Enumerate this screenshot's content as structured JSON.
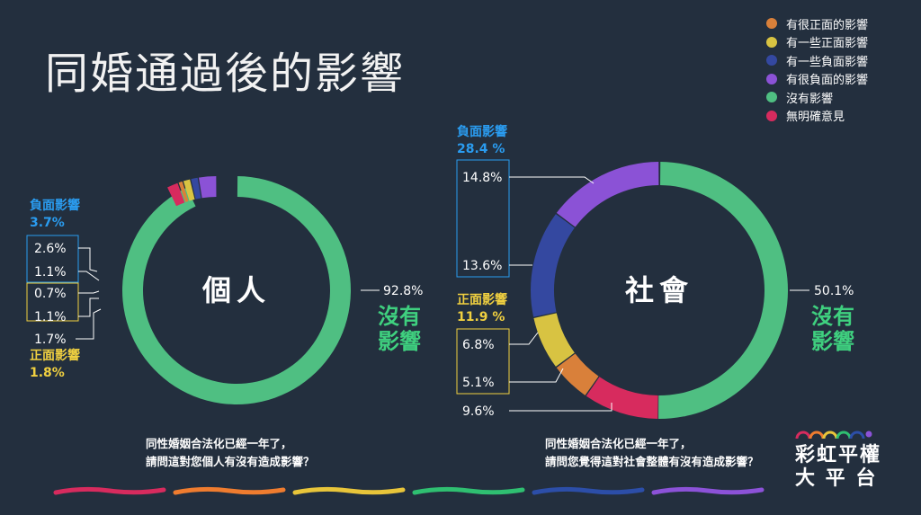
{
  "title": "同婚通過後的影響",
  "chart_data": {
    "type": "pie",
    "legend_position": "top-right",
    "legend": [
      {
        "label": "有很正面的影響",
        "color": "#d9803a"
      },
      {
        "label": "有一些正面影響",
        "color": "#d8c342"
      },
      {
        "label": "有一些負面影響",
        "color": "#3448a0"
      },
      {
        "label": "有很負面的影響",
        "color": "#8b52d6"
      },
      {
        "label": "沒有影響",
        "color": "#4fbf82"
      },
      {
        "label": "無明確意見",
        "color": "#d72b5e"
      }
    ],
    "charts": [
      {
        "center_label": "個人",
        "question": [
          "同性婚姻合法化已經一年了，",
          "請問這對您個人有沒有造成影響？"
        ],
        "slices": [
          {
            "label": "有很正面的影響",
            "value": 0.7
          },
          {
            "label": "有一些正面影響",
            "value": 1.1
          },
          {
            "label": "有一些負面影響",
            "value": 1.1
          },
          {
            "label": "有很負面的影響",
            "value": 2.6
          },
          {
            "label": "沒有影響",
            "value": 92.8
          },
          {
            "label": "無明確意見",
            "value": 1.7
          }
        ],
        "value_labels": [
          "2.6%",
          "1.1%",
          "0.7%",
          "1.1%",
          "1.7%",
          "92.8%"
        ],
        "negative": {
          "label": "負面影響",
          "total": "3.7%"
        },
        "positive": {
          "label": "正面影響",
          "total": "1.8%"
        },
        "no_effect_label": [
          "沒有",
          "影響"
        ]
      },
      {
        "center_label": "社會",
        "question": [
          "同性婚姻合法化已經一年了，",
          "請問您覺得這對社會整體有沒有造成影響？"
        ],
        "slices": [
          {
            "label": "有很正面的影響",
            "value": 5.1
          },
          {
            "label": "有一些正面影響",
            "value": 6.8
          },
          {
            "label": "有一些負面影響",
            "value": 13.6
          },
          {
            "label": "有很負面的影響",
            "value": 14.8
          },
          {
            "label": "沒有影響",
            "value": 50.1
          },
          {
            "label": "無明確意見",
            "value": 9.6
          }
        ],
        "value_labels": [
          "14.8%",
          "13.6%",
          "6.8%",
          "5.1%",
          "9.6%",
          "50.1%"
        ],
        "negative": {
          "label": "負面影響",
          "total": "28.4 %"
        },
        "positive": {
          "label": "正面影響",
          "total": "11.9 %"
        },
        "no_effect_label": [
          "沒有",
          "影響"
        ]
      }
    ]
  },
  "brand": {
    "line1": "彩虹平權",
    "line2": "大 平 台"
  },
  "colors": {
    "background": "#232f3e",
    "negative_text": "#2a9cf0",
    "positive_text": "#f0d040",
    "no_effect_text": "#3fd07f",
    "swatches": [
      "#d72b5e",
      "#ef7c2f",
      "#e8c53a",
      "#2fbf71",
      "#2c4ea8",
      "#8c52d8"
    ]
  }
}
